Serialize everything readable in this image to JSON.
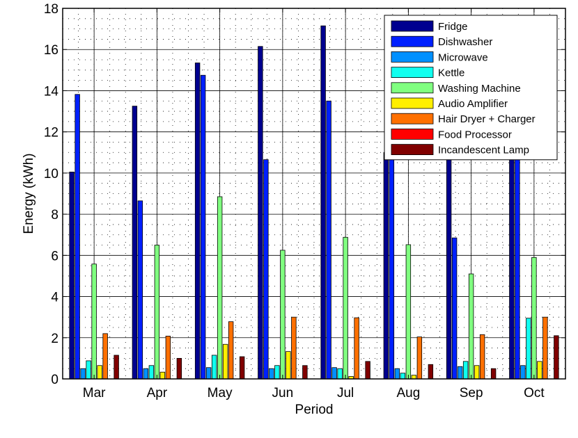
{
  "chart_data": {
    "type": "bar",
    "title": "",
    "xlabel": "Period",
    "ylabel": "Energy (kWh)",
    "ylim": [
      0,
      18
    ],
    "yticks": [
      0,
      2,
      4,
      6,
      8,
      10,
      12,
      14,
      16,
      18
    ],
    "grid": true,
    "legend_position": "top-right",
    "categories": [
      "Mar",
      "Apr",
      "May",
      "Jun",
      "Jul",
      "Aug",
      "Sep",
      "Oct"
    ],
    "series": [
      {
        "name": "Fridge",
        "color": "#00008f",
        "values": [
          10.05,
          13.25,
          15.35,
          16.15,
          17.15,
          11.0,
          11.0,
          11.0
        ]
      },
      {
        "name": "Dishwasher",
        "color": "#0020ff",
        "values": [
          13.82,
          8.65,
          14.75,
          10.65,
          13.5,
          10.9,
          6.85,
          10.9
        ]
      },
      {
        "name": "Microwave",
        "color": "#0090ff",
        "values": [
          0.5,
          0.5,
          0.55,
          0.5,
          0.55,
          0.5,
          0.6,
          0.65
        ]
      },
      {
        "name": "Kettle",
        "color": "#10ffef",
        "values": [
          0.88,
          0.65,
          1.15,
          0.65,
          0.5,
          0.28,
          0.85,
          2.95
        ]
      },
      {
        "name": "Washing Machine",
        "color": "#80ff80",
        "values": [
          5.58,
          6.5,
          8.85,
          6.25,
          6.88,
          6.52,
          5.1,
          5.9
        ]
      },
      {
        "name": "Audio Amplifier",
        "color": "#ffef00",
        "values": [
          0.65,
          0.33,
          1.68,
          1.33,
          0.12,
          0.18,
          0.65,
          0.85
        ]
      },
      {
        "name": "Hair Dryer + Charger",
        "color": "#ff7000",
        "values": [
          2.2,
          2.08,
          2.78,
          3.0,
          2.97,
          2.04,
          2.15,
          3.0
        ]
      },
      {
        "name": "Food Processor",
        "color": "#ff0000",
        "values": [
          0,
          0,
          0,
          0,
          0,
          0,
          0,
          0
        ]
      },
      {
        "name": "Incandescent Lamp",
        "color": "#800000",
        "values": [
          1.15,
          1.0,
          1.08,
          0.65,
          0.85,
          0.7,
          0.5,
          2.1
        ]
      }
    ]
  }
}
